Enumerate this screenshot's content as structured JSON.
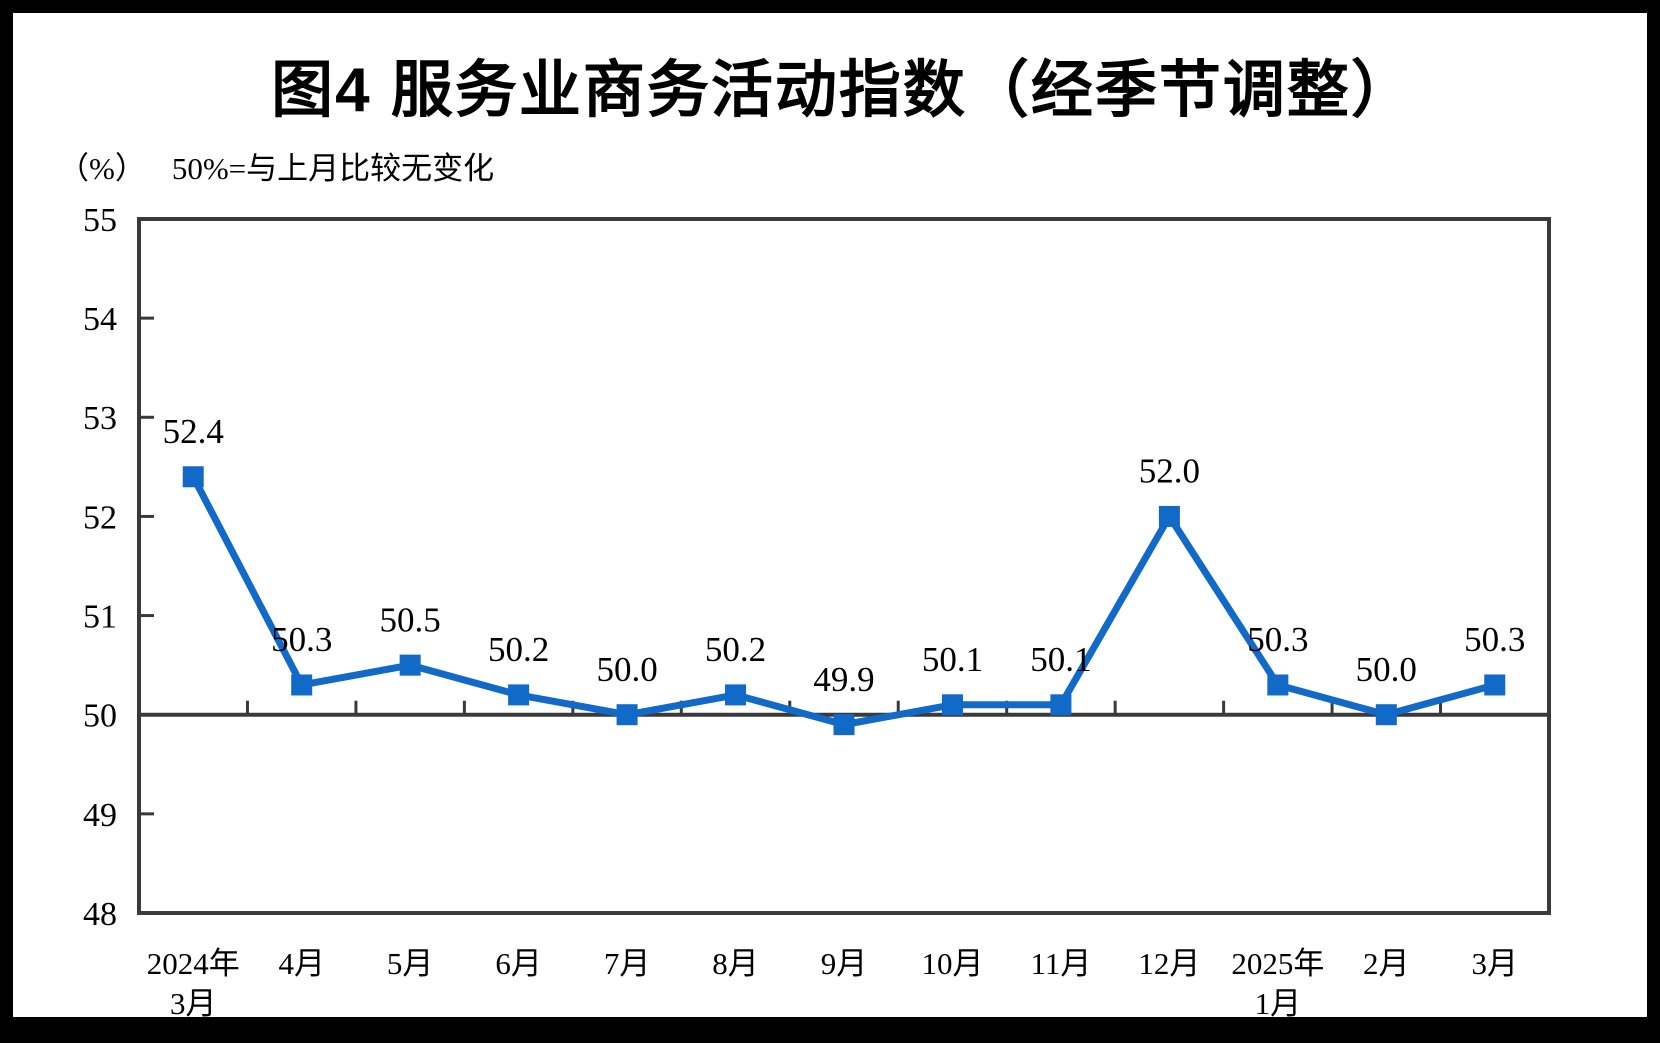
{
  "title": "图4 服务业商务活动指数（经季节调整）",
  "subtitle": {
    "unit": "（%）",
    "note": "50%=与上月比较无变化"
  },
  "chart_data": {
    "type": "line",
    "title": "图4 服务业商务活动指数（经季节调整）",
    "series_name": "服务业商务活动指数（经季节调整）",
    "categories": [
      [
        "2024年",
        "3月"
      ],
      [
        "4月"
      ],
      [
        "5月"
      ],
      [
        "6月"
      ],
      [
        "7月"
      ],
      [
        "8月"
      ],
      [
        "9月"
      ],
      [
        "10月"
      ],
      [
        "11月"
      ],
      [
        "12月"
      ],
      [
        "2025年",
        "1月"
      ],
      [
        "2月"
      ],
      [
        "3月"
      ]
    ],
    "values": [
      52.4,
      50.3,
      50.5,
      50.2,
      50.0,
      50.2,
      49.9,
      50.1,
      50.1,
      52.0,
      50.3,
      50.0,
      50.3
    ],
    "point_labels": [
      "52.4",
      "50.3",
      "50.5",
      "50.2",
      "50.0",
      "50.2",
      "49.9",
      "50.1",
      "50.1",
      "52.0",
      "50.3",
      "50.0",
      "50.3"
    ],
    "ylabel": "（%）",
    "ylim": [
      48,
      55
    ],
    "y_ticks": [
      "48",
      "49",
      "50",
      "51",
      "52",
      "53",
      "54",
      "55"
    ],
    "reference_line_value": 50,
    "reference_note": "50%=与上月比较无变化",
    "grid": false,
    "legend_position": "none",
    "marker": "square",
    "colors": {
      "line": "#1169C8",
      "axis": "#3A3A3A",
      "text": "#000000",
      "background": "#FFFFFF",
      "frame": "#000000"
    }
  }
}
